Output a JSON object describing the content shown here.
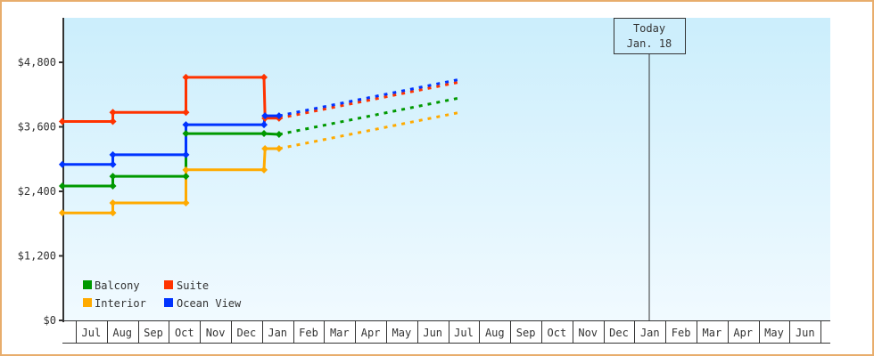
{
  "chart_data": {
    "type": "line",
    "title": "",
    "xlabel": "",
    "ylabel": "",
    "ylim": [
      0,
      5750
    ],
    "yticks": [
      0,
      1200,
      2400,
      3600,
      4800
    ],
    "ytick_labels": [
      "$0",
      "$1,200",
      "$2,400",
      "$3,600",
      "$4,800"
    ],
    "x_categories": [
      "Jul",
      "Aug",
      "Sep",
      "Oct",
      "Nov",
      "Dec",
      "Jan",
      "Feb",
      "Mar",
      "Apr",
      "May",
      "Jun",
      "Jul",
      "Aug",
      "Sep",
      "Oct",
      "Nov",
      "Dec",
      "Jan",
      "Feb",
      "Mar",
      "Apr",
      "May",
      "Jun"
    ],
    "grid": false,
    "legend_position": "bottom-left",
    "today_marker": {
      "line1": "Today",
      "line2": "Jan. 18",
      "x": "Y2 Jan 18"
    },
    "series": [
      {
        "name": "Balcony",
        "color": "#009900",
        "points": [
          [
            "Y1 Jun 18",
            2500
          ],
          [
            "Y1 Aug 7",
            2500
          ],
          [
            "Y1 Aug 7",
            2680
          ],
          [
            "Y1 Oct 18",
            2680
          ],
          [
            "Y1 Oct 18",
            3475
          ],
          [
            "Y2 Jan 3",
            3475
          ],
          [
            "Y2 Jan 18",
            3460
          ]
        ],
        "projection": [
          [
            "Y2 Jan 18",
            3460
          ],
          [
            "Y2 Jul 13",
            4140
          ]
        ]
      },
      {
        "name": "Suite",
        "color": "#ff3300",
        "points": [
          [
            "Y1 Jun 18",
            3700
          ],
          [
            "Y1 Aug 7",
            3700
          ],
          [
            "Y1 Aug 7",
            3870
          ],
          [
            "Y1 Oct 18",
            3870
          ],
          [
            "Y1 Oct 18",
            4520
          ],
          [
            "Y2 Jan 3",
            4520
          ],
          [
            "Y2 Jan 4",
            3760
          ],
          [
            "Y2 Jan 18",
            3760
          ]
        ],
        "projection": [
          [
            "Y2 Jan 18",
            3760
          ],
          [
            "Y2 Jul 13",
            4435
          ]
        ]
      },
      {
        "name": "Interior",
        "color": "#ffaa00",
        "points": [
          [
            "Y1 Jun 18",
            2000
          ],
          [
            "Y1 Aug 7",
            2000
          ],
          [
            "Y1 Aug 7",
            2185
          ],
          [
            "Y1 Oct 18",
            2185
          ],
          [
            "Y1 Oct 18",
            2800
          ],
          [
            "Y2 Jan 3",
            2800
          ],
          [
            "Y2 Jan 4",
            3195
          ],
          [
            "Y2 Jan 18",
            3195
          ]
        ],
        "projection": [
          [
            "Y2 Jan 18",
            3195
          ],
          [
            "Y2 Jul 13",
            3870
          ]
        ]
      },
      {
        "name": "Ocean View",
        "color": "#0033ff",
        "points": [
          [
            "Y1 Jun 18",
            2900
          ],
          [
            "Y1 Aug 7",
            2900
          ],
          [
            "Y1 Aug 7",
            3080
          ],
          [
            "Y1 Oct 18",
            3080
          ],
          [
            "Y1 Oct 18",
            3640
          ],
          [
            "Y2 Jan 3",
            3640
          ],
          [
            "Y2 Jan 4",
            3805
          ],
          [
            "Y2 Jan 18",
            3805
          ]
        ],
        "projection": [
          [
            "Y2 Jan 18",
            3805
          ],
          [
            "Y2 Jul 13",
            4485
          ]
        ]
      }
    ]
  }
}
